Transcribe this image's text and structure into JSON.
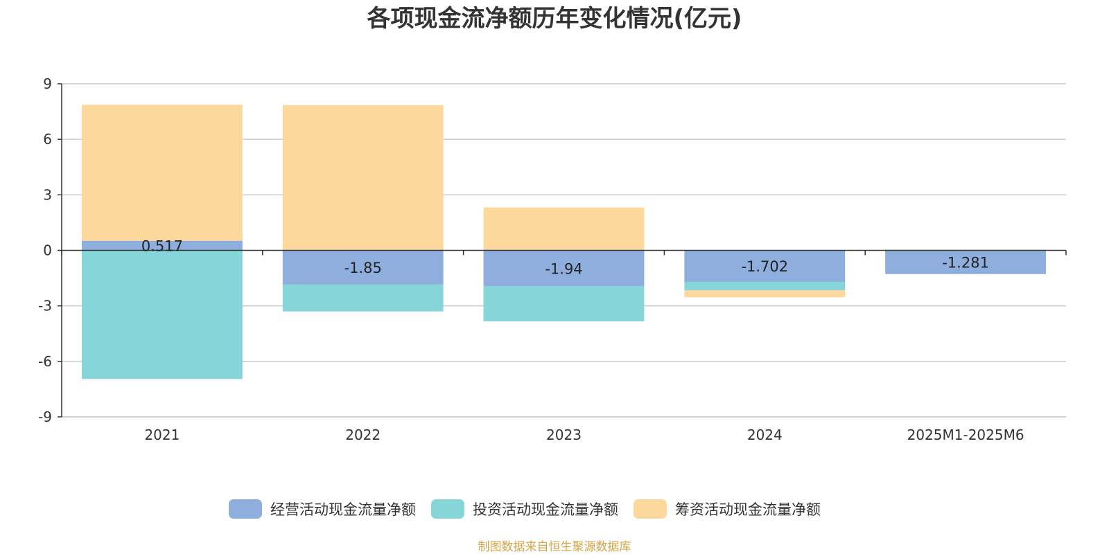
{
  "chart_data": {
    "type": "bar",
    "stacked": true,
    "title": "各项现金流净额历年变化情况(亿元)",
    "categories": [
      "2021",
      "2022",
      "2023",
      "2024",
      "2025M1-2025M6"
    ],
    "ylim": [
      -9,
      9
    ],
    "yticks": [
      "9",
      "6",
      "3",
      "0",
      "-3",
      "-6",
      "-9"
    ],
    "grid": true,
    "legend_position": "bottom",
    "series": [
      {
        "name": "经营活动现金流量净额",
        "color": "#8eaedd",
        "values": [
          0.517,
          -1.85,
          -1.94,
          -1.702,
          -1.281
        ],
        "labels": [
          "0.517",
          "-1.85",
          "-1.94",
          "-1.702",
          "-1.281"
        ]
      },
      {
        "name": "投资活动现金流量净额",
        "color": "#86d5d8",
        "values": [
          -6.95,
          -1.45,
          -1.9,
          -0.45,
          0
        ]
      },
      {
        "name": "筹资活动现金流量净额",
        "color": "#fdd89c",
        "values": [
          7.35,
          7.85,
          2.32,
          -0.38,
          0.04
        ]
      }
    ]
  },
  "footer": {
    "source": "制图数据来自恒生聚源数据库"
  }
}
